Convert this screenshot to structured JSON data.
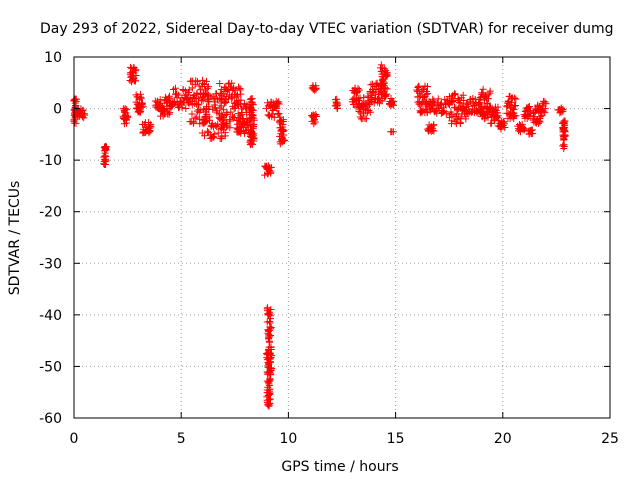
{
  "chart_data": {
    "type": "scatter",
    "title": "Day 293 of 2022, Sidereal Day-to-day VTEC variation (SDTVAR) for receiver dumg",
    "xlabel": "GPS time / hours",
    "ylabel": "SDTVAR / TECUs",
    "xlim": [
      0,
      25
    ],
    "ylim": [
      -60,
      10
    ],
    "xticks": [
      0,
      5,
      10,
      15,
      20,
      25
    ],
    "yticks": [
      -60,
      -50,
      -40,
      -30,
      -20,
      -10,
      0,
      10
    ],
    "grid": true,
    "marker": "+",
    "color": "#ff0000",
    "series": [
      {
        "name": "SDTVAR",
        "clusters": [
          {
            "x": [
              0.0,
              0.1
            ],
            "y": [
              -3.0,
              2.0
            ]
          },
          {
            "x": [
              0.1,
              0.5
            ],
            "y": [
              -2.0,
              0.0
            ]
          },
          {
            "x": [
              1.4,
              1.5
            ],
            "y": [
              -11.0,
              -7.0
            ]
          },
          {
            "x": [
              2.3,
              2.5
            ],
            "y": [
              -3.0,
              0.0
            ]
          },
          {
            "x": [
              2.6,
              2.9
            ],
            "y": [
              5.0,
              8.0
            ]
          },
          {
            "x": [
              2.9,
              3.2
            ],
            "y": [
              -1.0,
              3.0
            ]
          },
          {
            "x": [
              3.2,
              3.6
            ],
            "y": [
              -5.0,
              -2.5
            ]
          },
          {
            "x": [
              3.8,
              4.0
            ],
            "y": [
              0.0,
              1.5
            ]
          },
          {
            "x": [
              4.0,
              4.5
            ],
            "y": [
              -1.5,
              2.5
            ]
          },
          {
            "x": [
              4.5,
              5.4
            ],
            "y": [
              0.0,
              4.0
            ]
          },
          {
            "x": [
              5.4,
              6.3
            ],
            "y": [
              -3.0,
              5.5
            ]
          },
          {
            "x": [
              6.0,
              7.1
            ],
            "y": [
              -6.0,
              3.0
            ]
          },
          {
            "x": [
              6.8,
              7.8
            ],
            "y": [
              -4.0,
              5.0
            ]
          },
          {
            "x": [
              7.6,
              8.2
            ],
            "y": [
              -5.0,
              1.0
            ]
          },
          {
            "x": [
              8.2,
              8.4
            ],
            "y": [
              -7.0,
              2.0
            ]
          },
          {
            "x": [
              8.9,
              9.2
            ],
            "y": [
              -13.0,
              -11.0
            ]
          },
          {
            "x": [
              9.0,
              9.2
            ],
            "y": [
              -58.0,
              -38.5
            ]
          },
          {
            "x": [
              9.0,
              9.6
            ],
            "y": [
              -2.0,
              1.5
            ]
          },
          {
            "x": [
              9.6,
              9.8
            ],
            "y": [
              -7.0,
              -2.0
            ]
          },
          {
            "x": [
              11.1,
              11.3
            ],
            "y": [
              -3.0,
              -1.0
            ]
          },
          {
            "x": [
              11.1,
              11.3
            ],
            "y": [
              3.5,
              4.5
            ]
          },
          {
            "x": [
              12.2,
              12.3
            ],
            "y": [
              0.0,
              2.0
            ]
          },
          {
            "x": [
              13.0,
              13.3
            ],
            "y": [
              0.0,
              4.0
            ]
          },
          {
            "x": [
              13.3,
              13.8
            ],
            "y": [
              -2.0,
              2.5
            ]
          },
          {
            "x": [
              13.8,
              14.4
            ],
            "y": [
              1.0,
              5.0
            ]
          },
          {
            "x": [
              14.3,
              14.6
            ],
            "y": [
              2.0,
              8.5
            ]
          },
          {
            "x": [
              14.7,
              14.9
            ],
            "y": [
              0.5,
              2.0
            ]
          },
          {
            "x": [
              14.8,
              14.9
            ],
            "y": [
              -4.5,
              -4.5
            ]
          },
          {
            "x": [
              16.0,
              16.5
            ],
            "y": [
              -1.0,
              4.5
            ]
          },
          {
            "x": [
              16.5,
              16.8
            ],
            "y": [
              -4.5,
              -3.0
            ]
          },
          {
            "x": [
              16.5,
              17.5
            ],
            "y": [
              -1.0,
              2.0
            ]
          },
          {
            "x": [
              17.5,
              18.3
            ],
            "y": [
              -3.0,
              3.0
            ]
          },
          {
            "x": [
              18.3,
              19.0
            ],
            "y": [
              -1.0,
              2.0
            ]
          },
          {
            "x": [
              18.9,
              19.4
            ],
            "y": [
              -2.0,
              4.0
            ]
          },
          {
            "x": [
              19.4,
              19.8
            ],
            "y": [
              -3.0,
              0.5
            ]
          },
          {
            "x": [
              19.8,
              20.1
            ],
            "y": [
              -4.0,
              -2.5
            ]
          },
          {
            "x": [
              20.2,
              20.6
            ],
            "y": [
              -2.0,
              2.5
            ]
          },
          {
            "x": [
              20.7,
              21.0
            ],
            "y": [
              -4.5,
              -3.0
            ]
          },
          {
            "x": [
              21.0,
              21.3
            ],
            "y": [
              -2.0,
              0.5
            ]
          },
          {
            "x": [
              21.2,
              21.4
            ],
            "y": [
              -5.0,
              -4.0
            ]
          },
          {
            "x": [
              21.4,
              21.8
            ],
            "y": [
              -3.0,
              0.0
            ]
          },
          {
            "x": [
              21.6,
              22.0
            ],
            "y": [
              -1.0,
              1.5
            ]
          },
          {
            "x": [
              22.8,
              22.9
            ],
            "y": [
              -8.0,
              -2.0
            ]
          },
          {
            "x": [
              22.6,
              22.8
            ],
            "y": [
              -1.0,
              0.5
            ]
          }
        ]
      }
    ]
  }
}
